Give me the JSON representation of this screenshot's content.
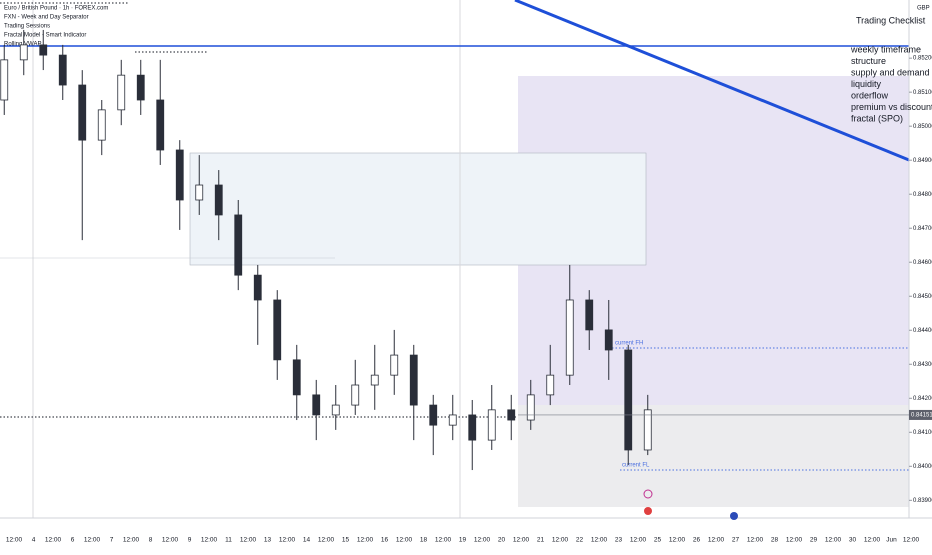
{
  "chart_data": {
    "type": "candlestick",
    "title": "Euro / British Pound · 1h · FOREX.com",
    "currency": "GBP",
    "x_labels": [
      "12:00",
      "4",
      "12:00",
      "6",
      "12:00",
      "7",
      "12:00",
      "8",
      "12:00",
      "9",
      "12:00",
      "11",
      "12:00",
      "13",
      "12:00",
      "14",
      "12:00",
      "15",
      "12:00",
      "16",
      "12:00",
      "18",
      "12:00",
      "19",
      "12:00",
      "20",
      "12:00",
      "21",
      "12:00",
      "22",
      "12:00",
      "23",
      "12:00",
      "25",
      "12:00",
      "26",
      "12:00",
      "27",
      "12:00",
      "28",
      "12:00",
      "29",
      "12:00",
      "30",
      "12:00",
      "Jun",
      "12:00"
    ],
    "open": [
      0.85077,
      0.85195,
      0.85239,
      0.85209,
      0.85121,
      0.84959,
      0.85048,
      0.8515,
      0.85077,
      0.8493,
      0.84783,
      0.84827,
      0.84739,
      0.84562,
      0.84489,
      0.84313,
      0.8421,
      0.84151,
      0.8418,
      0.84239,
      0.84268,
      0.84327,
      0.8418,
      0.84121,
      0.84151,
      0.84077,
      0.84166,
      0.84136,
      0.8421,
      0.84268,
      0.84489,
      0.84401,
      0.84342,
      0.84048
    ],
    "high": [
      0.85239,
      0.85283,
      0.85283,
      0.85239,
      0.85165,
      0.85077,
      0.85195,
      0.85195,
      0.85195,
      0.84959,
      0.84915,
      0.84871,
      0.84783,
      0.84592,
      0.84518,
      0.84357,
      0.84254,
      0.84239,
      0.84313,
      0.84357,
      0.84401,
      0.84357,
      0.8421,
      0.8421,
      0.84195,
      0.84239,
      0.8421,
      0.84254,
      0.84357,
      0.84592,
      0.84518,
      0.84489,
      0.84357,
      0.8421
    ],
    "low": [
      0.85033,
      0.8515,
      0.85165,
      0.85077,
      0.84665,
      0.84915,
      0.85003,
      0.85033,
      0.84886,
      0.84695,
      0.84739,
      0.84665,
      0.84518,
      0.84357,
      0.84254,
      0.84136,
      0.84077,
      0.84107,
      0.84151,
      0.84166,
      0.8421,
      0.84077,
      0.84033,
      0.84077,
      0.83989,
      0.84048,
      0.84077,
      0.84107,
      0.8418,
      0.84239,
      0.84342,
      0.84254,
      0.84004,
      0.84033
    ],
    "close": [
      0.85195,
      0.85239,
      0.85209,
      0.85121,
      0.84959,
      0.85048,
      0.8515,
      0.85077,
      0.8493,
      0.84783,
      0.84827,
      0.84739,
      0.84562,
      0.84489,
      0.84313,
      0.8421,
      0.84151,
      0.8418,
      0.84239,
      0.84268,
      0.84327,
      0.8418,
      0.84121,
      0.84151,
      0.84077,
      0.84166,
      0.84136,
      0.8421,
      0.84268,
      0.84489,
      0.84401,
      0.84342,
      0.84048,
      0.84166
    ],
    "up_color": "#ffffff",
    "down_color": "#2a2e39",
    "current_price": 0.84151,
    "ylim": [
      0.83848,
      0.85371
    ],
    "yticks": [
      {
        "value": 0.839,
        "label": "0.83900"
      },
      {
        "value": 0.84,
        "label": "0.84000"
      },
      {
        "value": 0.841,
        "label": "0.84100"
      },
      {
        "value": 0.842,
        "label": "0.84200"
      },
      {
        "value": 0.843,
        "label": "0.84300"
      },
      {
        "value": 0.844,
        "label": "0.84400"
      },
      {
        "value": 0.845,
        "label": "0.84500"
      },
      {
        "value": 0.846,
        "label": "0.84600"
      },
      {
        "value": 0.847,
        "label": "0.84700"
      },
      {
        "value": 0.848,
        "label": "0.84800"
      },
      {
        "value": 0.849,
        "label": "0.84900"
      },
      {
        "value": 0.85,
        "label": "0.85000"
      },
      {
        "value": 0.851,
        "label": "0.85100"
      },
      {
        "value": 0.852,
        "label": "0.85200"
      }
    ],
    "annotations": [
      "current FH",
      "current FL"
    ]
  },
  "indicators": [
    "FXN - Week and Day Separator",
    "Trading Sessions",
    "Fractal Model - Smart Indicator",
    "Rolling VWAP"
  ],
  "checklist": {
    "title": "Trading Checklist",
    "items": [
      "weekly timeframe",
      "structure",
      "supply and demand",
      "liquidity",
      "orderflow",
      "premium vs discount",
      "fractal (SPO)"
    ]
  }
}
